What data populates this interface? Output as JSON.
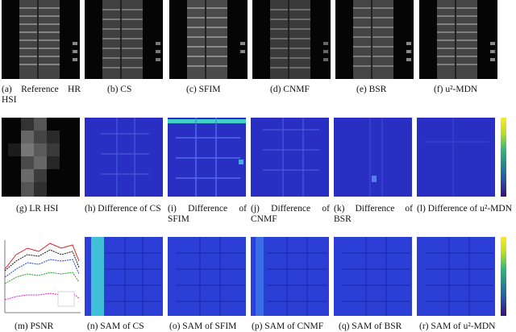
{
  "rows": [
    {
      "captions": [
        "(a) Reference HR HSI",
        "(b) CS",
        "(c) SFIM",
        "(d) CNMF",
        "(e) BSR",
        "(f) u²-MDN"
      ]
    },
    {
      "captions": [
        "(g) LR HSI",
        "(h) Difference of CS",
        "(i) Difference of SFIM",
        "(j) Difference of CNMF",
        "(k) Difference of BSR",
        "(l) Difference of u²-MDN"
      ]
    },
    {
      "captions": [
        "(m) PSNR",
        "(n) SAM of CS",
        "(o) SAM of SFIM",
        "(p) SAM of CNMF",
        "(q) SAM of BSR",
        "(r) SAM of u²-MDN"
      ]
    }
  ],
  "colors": {
    "diff_bg": "#2a2fc4",
    "sam_bg": "#2b3fd6",
    "gray_bg": "#050505"
  }
}
